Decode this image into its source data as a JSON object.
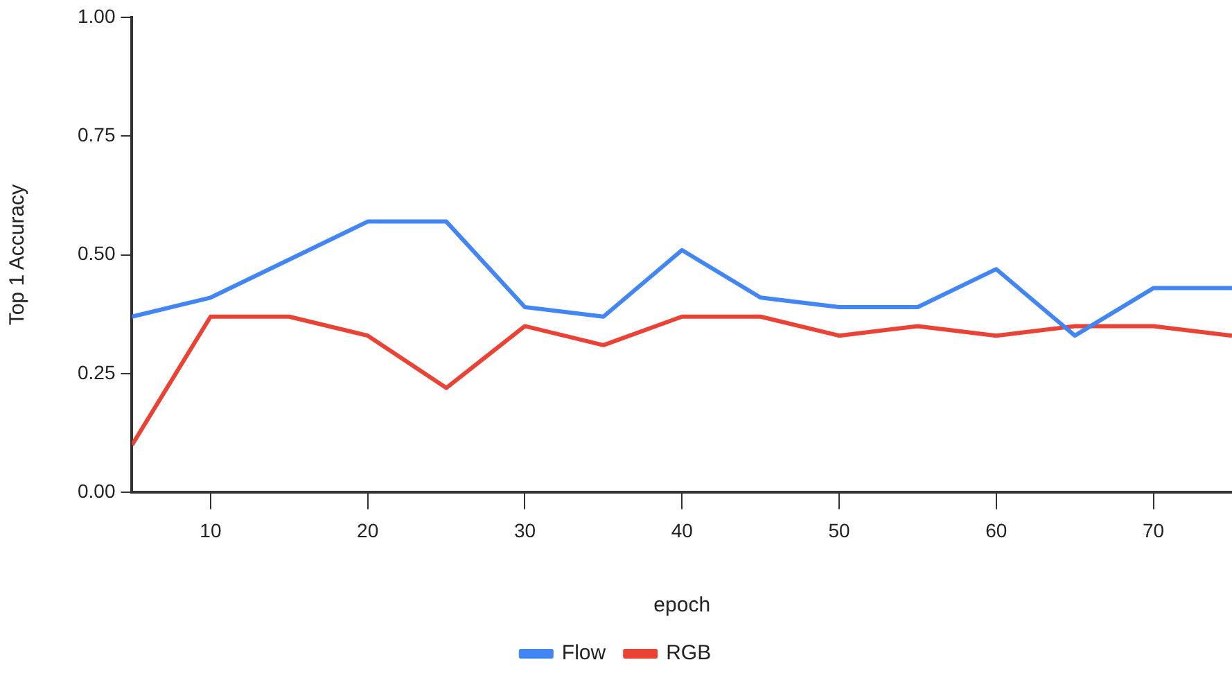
{
  "chart_data": {
    "type": "line",
    "xlabel": "epoch",
    "ylabel": "Top 1 Accuracy",
    "x": [
      5,
      10,
      15,
      20,
      25,
      30,
      35,
      40,
      45,
      50,
      55,
      60,
      65,
      70,
      75
    ],
    "series": [
      {
        "name": "Flow",
        "color": "#4285f4",
        "values": [
          0.37,
          0.41,
          0.49,
          0.57,
          0.57,
          0.39,
          0.37,
          0.51,
          0.41,
          0.39,
          0.39,
          0.47,
          0.33,
          0.43,
          0.43
        ]
      },
      {
        "name": "RGB",
        "color": "#ea4335",
        "values": [
          0.1,
          0.37,
          0.37,
          0.33,
          0.22,
          0.35,
          0.31,
          0.37,
          0.37,
          0.33,
          0.35,
          0.33,
          0.35,
          0.35,
          0.33
        ]
      }
    ],
    "xlim": [
      5,
      75
    ],
    "xticks": [
      10,
      20,
      30,
      40,
      50,
      60,
      70
    ],
    "ylim": [
      0,
      1
    ],
    "yticks": [
      {
        "value": 0,
        "label": "0.00"
      },
      {
        "value": 0.25,
        "label": "0.25"
      },
      {
        "value": 0.5,
        "label": "0.50"
      },
      {
        "value": 0.75,
        "label": "0.75"
      },
      {
        "value": 1,
        "label": "1.00"
      }
    ],
    "grid": false,
    "legend": "bottom",
    "marker": "none",
    "line_style": "solid"
  }
}
